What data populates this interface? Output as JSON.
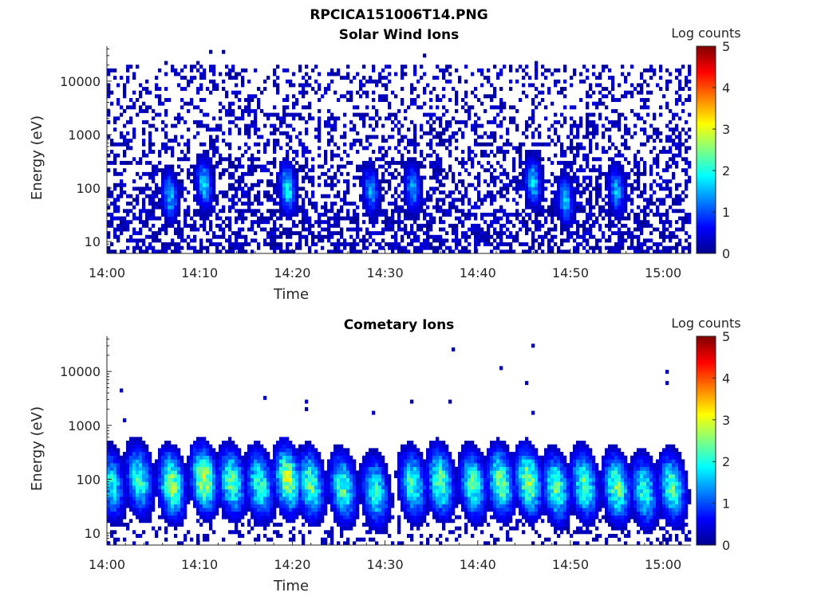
{
  "figure": {
    "title": "RPCICA151006T14.PNG"
  },
  "chart_data": [
    {
      "type": "heatmap",
      "title": "Solar Wind Ions",
      "xlabel": "Time",
      "ylabel": "Energy (eV)",
      "x_ticks": [
        "14:00",
        "14:10",
        "14:20",
        "14:30",
        "14:40",
        "14:50",
        "15:00"
      ],
      "x_tick_minutes": [
        0,
        10,
        20,
        30,
        40,
        50,
        60
      ],
      "xlim_minutes": [
        0,
        63
      ],
      "y_ticks": [
        "10",
        "100",
        "1000",
        "10000"
      ],
      "y_tick_values": [
        10,
        100,
        1000,
        10000
      ],
      "ylim": [
        6,
        45000
      ],
      "y_scale": "log",
      "colorbar": {
        "label": "Log counts",
        "ticks": [
          "0",
          "1",
          "2",
          "3",
          "4",
          "5"
        ],
        "range": [
          0,
          5
        ],
        "colormap": "jet"
      },
      "features": {
        "background_log_counts": 0.3,
        "scatter_log_counts_max": 1.0,
        "bursts": [
          {
            "t_minutes": 6.8,
            "energy_center_eV": 70,
            "peak_log_counts": 1.7
          },
          {
            "t_minutes": 10.5,
            "energy_center_eV": 120,
            "peak_log_counts": 1.8
          },
          {
            "t_minutes": 19.5,
            "energy_center_eV": 100,
            "peak_log_counts": 2.1
          },
          {
            "t_minutes": 28.5,
            "energy_center_eV": 90,
            "peak_log_counts": 1.5
          },
          {
            "t_minutes": 33.0,
            "energy_center_eV": 100,
            "peak_log_counts": 1.5
          },
          {
            "t_minutes": 46.0,
            "energy_center_eV": 130,
            "peak_log_counts": 1.8
          },
          {
            "t_minutes": 49.5,
            "energy_center_eV": 60,
            "peak_log_counts": 1.6
          },
          {
            "t_minutes": 55.0,
            "energy_center_eV": 90,
            "peak_log_counts": 1.6
          }
        ]
      }
    },
    {
      "type": "heatmap",
      "title": "Cometary Ions",
      "xlabel": "Time",
      "ylabel": "Energy (eV)",
      "x_ticks": [
        "14:00",
        "14:10",
        "14:20",
        "14:30",
        "14:40",
        "14:50",
        "15:00"
      ],
      "x_tick_minutes": [
        0,
        10,
        20,
        30,
        40,
        50,
        60
      ],
      "xlim_minutes": [
        0,
        63
      ],
      "y_ticks": [
        "10",
        "100",
        "1000",
        "10000"
      ],
      "y_tick_values": [
        10,
        100,
        1000,
        10000
      ],
      "ylim": [
        6,
        45000
      ],
      "y_scale": "log",
      "colorbar": {
        "label": "Log counts",
        "ticks": [
          "0",
          "1",
          "2",
          "3",
          "4",
          "5"
        ],
        "range": [
          0,
          5
        ],
        "colormap": "jet"
      },
      "features": {
        "sparse_high_energy_points": true,
        "bursts": [
          {
            "t_minutes": 0.5,
            "energy_center_eV": 80,
            "peak_log_counts": 2.0
          },
          {
            "t_minutes": 3.5,
            "energy_center_eV": 100,
            "peak_log_counts": 2.3
          },
          {
            "t_minutes": 7.0,
            "energy_center_eV": 80,
            "peak_log_counts": 2.8
          },
          {
            "t_minutes": 10.5,
            "energy_center_eV": 100,
            "peak_log_counts": 3.0
          },
          {
            "t_minutes": 13.5,
            "energy_center_eV": 90,
            "peak_log_counts": 2.5
          },
          {
            "t_minutes": 16.5,
            "energy_center_eV": 80,
            "peak_log_counts": 2.4
          },
          {
            "t_minutes": 19.5,
            "energy_center_eV": 100,
            "peak_log_counts": 3.0
          },
          {
            "t_minutes": 22.0,
            "energy_center_eV": 80,
            "peak_log_counts": 2.5
          },
          {
            "t_minutes": 25.5,
            "energy_center_eV": 70,
            "peak_log_counts": 2.4
          },
          {
            "t_minutes": 29.0,
            "energy_center_eV": 60,
            "peak_log_counts": 2.2
          },
          {
            "t_minutes": 33.0,
            "energy_center_eV": 80,
            "peak_log_counts": 2.3
          },
          {
            "t_minutes": 36.0,
            "energy_center_eV": 90,
            "peak_log_counts": 2.6
          },
          {
            "t_minutes": 39.5,
            "energy_center_eV": 80,
            "peak_log_counts": 2.4
          },
          {
            "t_minutes": 42.5,
            "energy_center_eV": 90,
            "peak_log_counts": 2.7
          },
          {
            "t_minutes": 45.5,
            "energy_center_eV": 90,
            "peak_log_counts": 2.9
          },
          {
            "t_minutes": 48.5,
            "energy_center_eV": 70,
            "peak_log_counts": 2.5
          },
          {
            "t_minutes": 51.5,
            "energy_center_eV": 80,
            "peak_log_counts": 2.5
          },
          {
            "t_minutes": 55.0,
            "energy_center_eV": 70,
            "peak_log_counts": 2.6
          },
          {
            "t_minutes": 58.0,
            "energy_center_eV": 60,
            "peak_log_counts": 2.2
          },
          {
            "t_minutes": 61.0,
            "energy_center_eV": 70,
            "peak_log_counts": 2.4
          }
        ]
      }
    }
  ]
}
